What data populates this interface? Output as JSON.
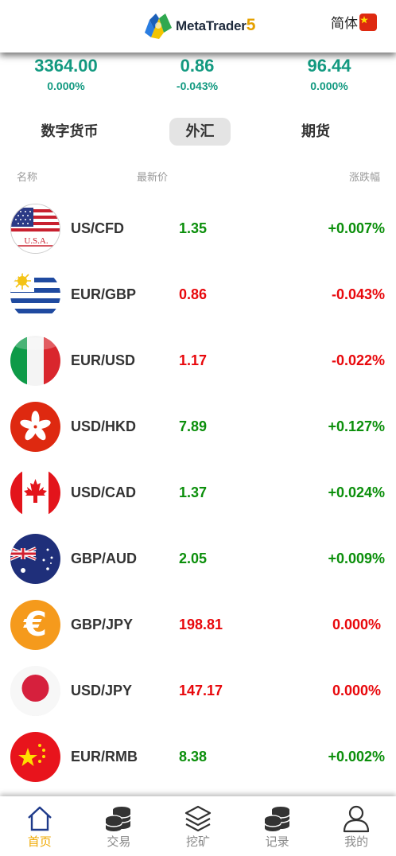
{
  "header": {
    "logo_text": "MetaTrader",
    "logo_number": "5",
    "language_label": "简体",
    "language_flag": "china-flag-icon"
  },
  "summary": [
    {
      "price": "3364.00",
      "change": "0.000%"
    },
    {
      "price": "0.86",
      "change": "-0.043%"
    },
    {
      "price": "96.44",
      "change": "0.000%"
    }
  ],
  "tabs": [
    {
      "label": "数字货币",
      "active": false
    },
    {
      "label": "外汇",
      "active": true
    },
    {
      "label": "期货",
      "active": false
    }
  ],
  "columns": {
    "name": "名称",
    "price": "最新价",
    "change": "涨跌幅"
  },
  "rows": [
    {
      "pair": "US/CFD",
      "price": "1.35",
      "change": "+0.007%",
      "direction": "up",
      "icon": "usa-flag-icon"
    },
    {
      "pair": "EUR/GBP",
      "price": "0.86",
      "change": "-0.043%",
      "direction": "down",
      "icon": "uruguay-flag-icon"
    },
    {
      "pair": "EUR/USD",
      "price": "1.17",
      "change": "-0.022%",
      "direction": "down",
      "icon": "italy-flag-icon"
    },
    {
      "pair": "USD/HKD",
      "price": "7.89",
      "change": "+0.127%",
      "direction": "up",
      "icon": "hong-kong-flag-icon"
    },
    {
      "pair": "USD/CAD",
      "price": "1.37",
      "change": "+0.024%",
      "direction": "up",
      "icon": "canada-flag-icon"
    },
    {
      "pair": "GBP/AUD",
      "price": "2.05",
      "change": "+0.009%",
      "direction": "up",
      "icon": "australia-flag-icon"
    },
    {
      "pair": "GBP/JPY",
      "price": "198.81",
      "change": "0.000%",
      "direction": "down",
      "icon": "euro-coin-icon"
    },
    {
      "pair": "USD/JPY",
      "price": "147.17",
      "change": "0.000%",
      "direction": "down",
      "icon": "japan-flag-icon"
    },
    {
      "pair": "EUR/RMB",
      "price": "8.38",
      "change": "+0.002%",
      "direction": "up",
      "icon": "china-flag-icon"
    }
  ],
  "flag_labels": {
    "usa": "U.S.A."
  },
  "bottom_nav": [
    {
      "label": "首页",
      "icon": "home-icon",
      "active": true
    },
    {
      "label": "交易",
      "icon": "coins-icon",
      "active": false
    },
    {
      "label": "挖矿",
      "icon": "layers-icon",
      "active": false
    },
    {
      "label": "记录",
      "icon": "coins-stack-icon",
      "active": false
    },
    {
      "label": "我的",
      "icon": "user-icon",
      "active": false
    }
  ],
  "colors": {
    "accent_green": "#139a81",
    "up": "#0b8f0b",
    "down": "#e8080c",
    "nav_active": "#f0a800",
    "nav_inactive": "#8a8a8a"
  }
}
